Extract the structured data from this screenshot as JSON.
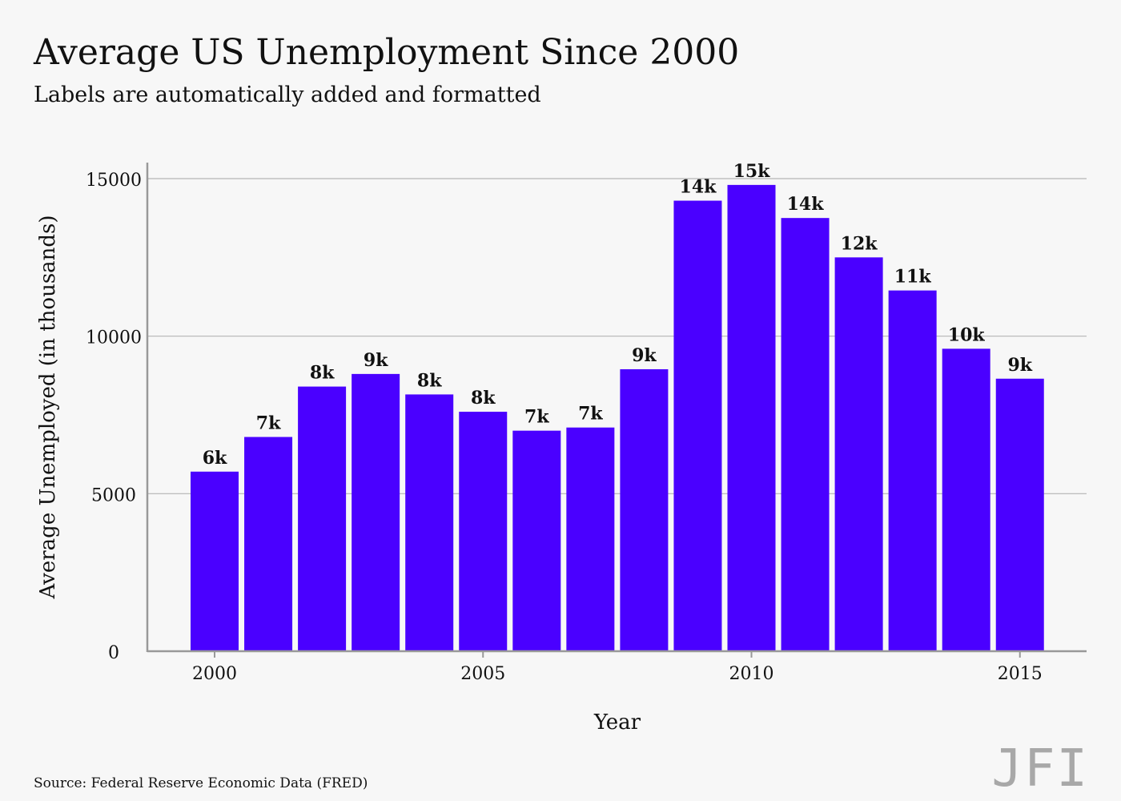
{
  "colors": {
    "bar": "#4a00ff",
    "grid": "#b5b5b5",
    "axis": "#999999",
    "text": "#111111",
    "background": "#f7f7f7"
  },
  "chart_data": {
    "type": "bar",
    "title": "Average US Unemployment Since 2000",
    "subtitle": "Labels are automatically added and formatted",
    "xlabel": "Year",
    "ylabel": "Average Unemployed (in thousands)",
    "categories": [
      2000,
      2001,
      2002,
      2003,
      2004,
      2005,
      2006,
      2007,
      2008,
      2009,
      2010,
      2011,
      2012,
      2013,
      2014,
      2015
    ],
    "values": [
      5700,
      6800,
      8400,
      8800,
      8150,
      7600,
      7000,
      7100,
      8950,
      14300,
      14800,
      13750,
      12500,
      11450,
      9600,
      8650
    ],
    "data_labels": [
      "6k",
      "7k",
      "8k",
      "9k",
      "8k",
      "8k",
      "7k",
      "7k",
      "9k",
      "14k",
      "15k",
      "14k",
      "12k",
      "11k",
      "10k",
      "9k"
    ],
    "x_ticks": [
      2000,
      2005,
      2010,
      2015
    ],
    "y_ticks": [
      0,
      5000,
      10000,
      15000
    ],
    "ylim": [
      0,
      15000
    ],
    "grid": "horizontal"
  },
  "footer": {
    "source": "Source: Federal Reserve Economic Data (FRED)",
    "brand": "JFI"
  }
}
